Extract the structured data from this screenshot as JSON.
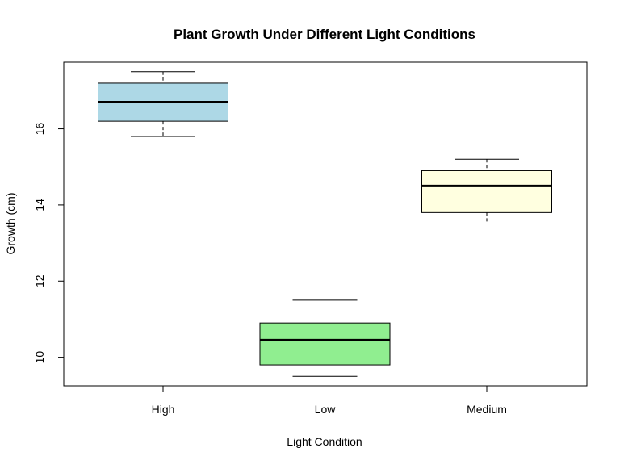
{
  "chart_data": {
    "type": "boxplot",
    "title": "Plant Growth Under Different Light Conditions",
    "xlabel": "Light Condition",
    "ylabel": "Growth (cm)",
    "categories": [
      "High",
      "Low",
      "Medium"
    ],
    "ylim": [
      9.25,
      17.75
    ],
    "yticks": [
      10,
      12,
      14,
      16
    ],
    "ytick_labels": [
      "10",
      "12",
      "14",
      "16"
    ],
    "boxes": [
      {
        "category": "High",
        "min": 15.8,
        "q1": 16.2,
        "median": 16.7,
        "q3": 17.2,
        "max": 17.5,
        "color": "#add8e6"
      },
      {
        "category": "Low",
        "min": 9.5,
        "q1": 9.8,
        "median": 10.45,
        "q3": 10.9,
        "max": 11.5,
        "color": "#90ee90"
      },
      {
        "category": "Medium",
        "min": 13.5,
        "q1": 13.8,
        "median": 14.5,
        "q3": 14.9,
        "max": 15.2,
        "color": "#ffffe0"
      }
    ],
    "grid": false,
    "legend": "none"
  }
}
